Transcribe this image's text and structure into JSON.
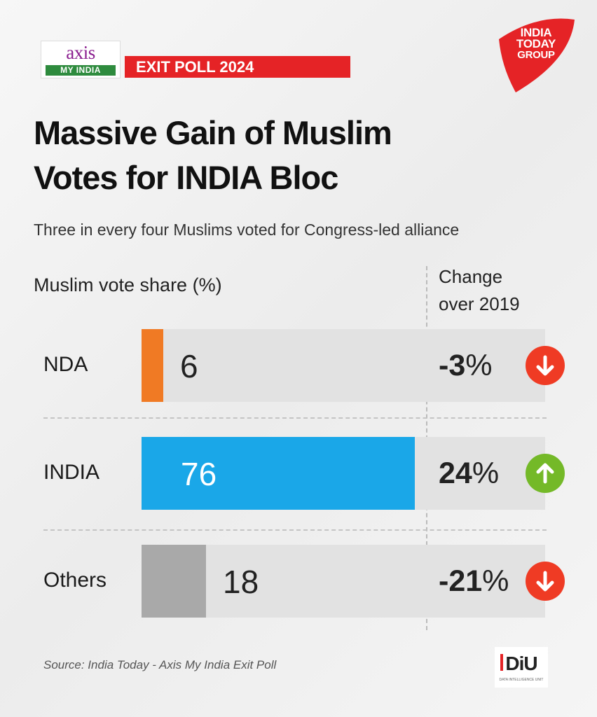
{
  "logos": {
    "axis": {
      "word": "axis",
      "sub": "MY INDIA"
    },
    "banner": "EXIT POLL 2024",
    "india_today": [
      "INDIA",
      "TODAY",
      "GROUP"
    ],
    "diu": {
      "text": "DiU",
      "sub": "DATA INTELLIGENCE UNIT"
    }
  },
  "title_lines": [
    "Massive Gain of Muslim",
    "Votes for INDIA Bloc"
  ],
  "subtitle": "Three in every four Muslims voted for Congress-led alliance",
  "source": "Source: India Today - Axis My India Exit Poll",
  "colors": {
    "accent_red": "#e52326",
    "nda": "#f07a24",
    "india": "#1aa7e8",
    "others": "#a9a9a9",
    "down": "#ef3b24",
    "up": "#74b928"
  },
  "chart_data": {
    "type": "bar",
    "orientation": "horizontal",
    "title": "Muslim vote share (%)",
    "change_header": [
      "Change",
      "over 2019"
    ],
    "categories": [
      "NDA",
      "INDIA",
      "Others"
    ],
    "values": [
      6,
      76,
      18
    ],
    "value_labels": [
      "6",
      "76",
      "18"
    ],
    "changes": [
      {
        "value": -3,
        "label": "-3",
        "unit": "%",
        "direction": "down"
      },
      {
        "value": 24,
        "label": "24",
        "unit": "%",
        "direction": "up"
      },
      {
        "value": -21,
        "label": "-21",
        "unit": "%",
        "direction": "down"
      }
    ],
    "colors": [
      "#f07a24",
      "#1aa7e8",
      "#a9a9a9"
    ],
    "xlim": [
      0,
      100
    ]
  }
}
